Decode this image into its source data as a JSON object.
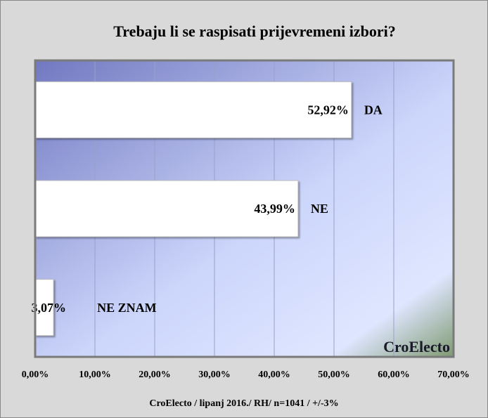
{
  "chart_data": {
    "type": "bar",
    "orientation": "horizontal",
    "title": "Trebaju li se raspisati prijevremeni izbori?",
    "categories": [
      "DA",
      "NE",
      "NE ZNAM"
    ],
    "values": [
      52.92,
      43.99,
      3.07
    ],
    "value_labels": [
      "52,92%",
      "43,99%",
      "3,07%"
    ],
    "color": "#ffffff",
    "xlim": [
      0,
      70
    ],
    "xticks": [
      {
        "value": 0,
        "label": "0,00%"
      },
      {
        "value": 10,
        "label": "10,00%"
      },
      {
        "value": 20,
        "label": "20,00%"
      },
      {
        "value": 30,
        "label": "30,00%"
      },
      {
        "value": 40,
        "label": "40,00%"
      },
      {
        "value": 50,
        "label": "50,00%"
      },
      {
        "value": 60,
        "label": "60,00%"
      },
      {
        "value": 70,
        "label": "70,00%"
      }
    ],
    "grid": true,
    "watermark": "CroElecto",
    "footer": "CroElecto / lipanj 2016./ RH/ n=1041 / +/-3%"
  }
}
